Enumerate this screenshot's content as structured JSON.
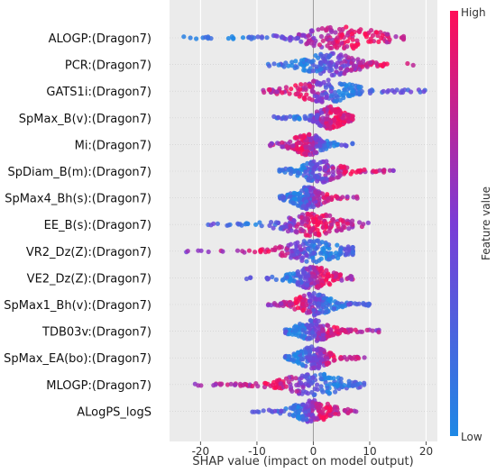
{
  "chart_data": {
    "type": "scatter",
    "subtype": "shap-beeswarm",
    "xlabel": "SHAP value (impact on model output)",
    "xticks": [
      -20,
      -10,
      0,
      10,
      20
    ],
    "xlim": [
      -25.5,
      22
    ],
    "grid": "vertical",
    "colorbar": {
      "label": "Feature value",
      "high_label": "High",
      "low_label": "Low",
      "low_color": "#1e88e5",
      "high_color": "#ff0d57"
    },
    "features": [
      {
        "name": "ALOGP:(Dragon7)",
        "min": -23,
        "max": 16,
        "low_center": -14,
        "high_center": 8,
        "density_center": 5
      },
      {
        "name": "PCR:(Dragon7)",
        "min": -8,
        "max": 18,
        "low_center": -2,
        "high_center": 12,
        "density_center": 3
      },
      {
        "name": "GATS1i:(Dragon7)",
        "min": -9,
        "max": 21,
        "low_center": 6,
        "high_center": -3,
        "density_center": 2
      },
      {
        "name": "SpMax_B(v):(Dragon7)",
        "min": -7,
        "max": 7,
        "low_center": -3,
        "high_center": 4,
        "density_center": 3
      },
      {
        "name": "Mi:(Dragon7)",
        "min": -8,
        "max": 7,
        "low_center": 3,
        "high_center": -2,
        "density_center": -1
      },
      {
        "name": "SpDiam_B(m):(Dragon7)",
        "min": -6,
        "max": 15,
        "low_center": -3,
        "high_center": 7,
        "density_center": 1
      },
      {
        "name": "SpMax4_Bh(s):(Dragon7)",
        "min": -6,
        "max": 8,
        "low_center": -3,
        "high_center": 3,
        "density_center": -1
      },
      {
        "name": "EE_B(s):(Dragon7)",
        "min": -19,
        "max": 10,
        "low_center": -10,
        "high_center": 1,
        "density_center": 0
      },
      {
        "name": "VR2_Dz(Z):(Dragon7)",
        "min": -23,
        "max": 7,
        "low_center": 2,
        "high_center": -8,
        "density_center": 0
      },
      {
        "name": "VE2_Dz(Z):(Dragon7)",
        "min": -12,
        "max": 7,
        "low_center": -4,
        "high_center": 2,
        "density_center": 0
      },
      {
        "name": "SpMax1_Bh(v):(Dragon7)",
        "min": -8,
        "max": 10,
        "low_center": 3,
        "high_center": -3,
        "density_center": 0
      },
      {
        "name": "TDB03v:(Dragon7)",
        "min": -5,
        "max": 12,
        "low_center": -3,
        "high_center": 4,
        "density_center": 0
      },
      {
        "name": "SpMax_EA(bo):(Dragon7)",
        "min": -5,
        "max": 10,
        "low_center": -3,
        "high_center": 4,
        "density_center": 0
      },
      {
        "name": "MLOGP:(Dragon7)",
        "min": -21,
        "max": 9,
        "low_center": 3,
        "high_center": -7,
        "density_center": 0
      },
      {
        "name": "ALogPS_logS",
        "min": -11,
        "max": 8,
        "low_center": -3,
        "high_center": 2,
        "density_center": 0
      }
    ]
  }
}
